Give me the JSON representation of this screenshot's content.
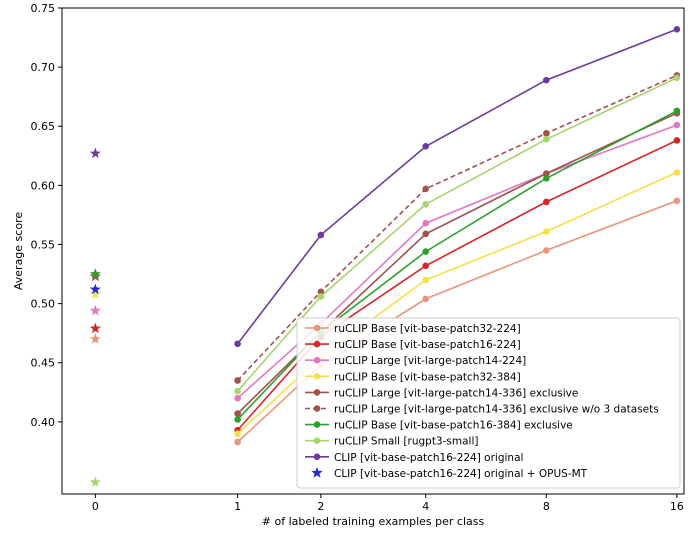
{
  "chart_data": {
    "type": "line",
    "title": "",
    "xlabel": "# of labeled training examples per class",
    "ylabel": "Average score",
    "x_ticks": [
      0,
      1,
      2,
      4,
      8,
      16
    ],
    "x_scale": "log2(x+1)",
    "xlim": [
      -0.15,
      16.6
    ],
    "y_ticks": [
      0.4,
      0.45,
      0.5,
      0.55,
      0.6,
      0.65,
      0.7,
      0.75
    ],
    "y_tick_labels": [
      "0.40",
      "0.45",
      "0.50",
      "0.55",
      "0.60",
      "0.65",
      "0.70",
      "0.75"
    ],
    "ylim": [
      0.339,
      0.75
    ],
    "grid": false,
    "legend_position": "lower-right",
    "series": [
      {
        "name": "ruCLIP Base [vit-base-patch32-224]",
        "color": "#e8967a",
        "dash": false,
        "x": [
          0,
          1,
          2,
          4,
          8,
          16
        ],
        "values": [
          0.47,
          0.383,
          0.448,
          0.504,
          0.545,
          0.587
        ]
      },
      {
        "name": "ruCLIP Base [vit-base-patch16-224]",
        "color": "#d62728",
        "dash": false,
        "x": [
          0,
          1,
          2,
          4,
          8,
          16
        ],
        "values": [
          0.479,
          0.393,
          0.472,
          0.532,
          0.586,
          0.638
        ]
      },
      {
        "name": "ruCLIP Large [vit-large-patch14-224]",
        "color": "#e377c2",
        "dash": false,
        "x": [
          0,
          1,
          2,
          4,
          8,
          16
        ],
        "values": [
          0.494,
          0.42,
          0.483,
          0.568,
          0.61,
          0.651
        ]
      },
      {
        "name": "ruCLIP Base [vit-base-patch32-384]",
        "color": "#f5e04a",
        "dash": false,
        "x": [
          0,
          1,
          2,
          4,
          8,
          16
        ],
        "values": [
          0.508,
          0.39,
          0.455,
          0.52,
          0.561,
          0.611
        ]
      },
      {
        "name": "ruCLIP Large [vit-large-patch14-336] exclusive",
        "color": "#a0524d",
        "dash": false,
        "x": [
          0,
          1,
          2,
          4,
          8,
          16
        ],
        "values": [
          0.523,
          0.407,
          0.476,
          0.559,
          0.61,
          0.661
        ]
      },
      {
        "name": "ruCLIP Large [vit-large-patch14-336] exclusive w/o 3 datasets",
        "color": "#a0524d",
        "dash": true,
        "x": [
          0,
          1,
          2,
          4,
          8,
          16
        ],
        "values": [
          0.523,
          0.435,
          0.51,
          0.597,
          0.644,
          0.693
        ]
      },
      {
        "name": "ruCLIP Base [vit-base-patch16-384] exclusive",
        "color": "#2ca02c",
        "dash": false,
        "x": [
          0,
          1,
          2,
          4,
          8,
          16
        ],
        "values": [
          0.525,
          0.402,
          0.476,
          0.544,
          0.606,
          0.663
        ]
      },
      {
        "name": "ruCLIP Small [rugpt3-small]",
        "color": "#a8d46f",
        "dash": false,
        "x": [
          0,
          1,
          2,
          4,
          8,
          16
        ],
        "values": [
          0.349,
          0.426,
          0.506,
          0.584,
          0.639,
          0.691
        ]
      },
      {
        "name": "CLIP [vit-base-patch16-224] original",
        "color": "#6a3d9a",
        "dash": false,
        "x": [
          0,
          1,
          2,
          4,
          8,
          16
        ],
        "values": [
          0.627,
          0.466,
          0.558,
          0.633,
          0.689,
          0.732
        ]
      },
      {
        "name": "CLIP [vit-base-patch16-224] original + OPUS-MT",
        "color": "#2929d6",
        "dash": false,
        "star_only": true,
        "x": [
          0
        ],
        "values": [
          0.512
        ]
      }
    ]
  }
}
